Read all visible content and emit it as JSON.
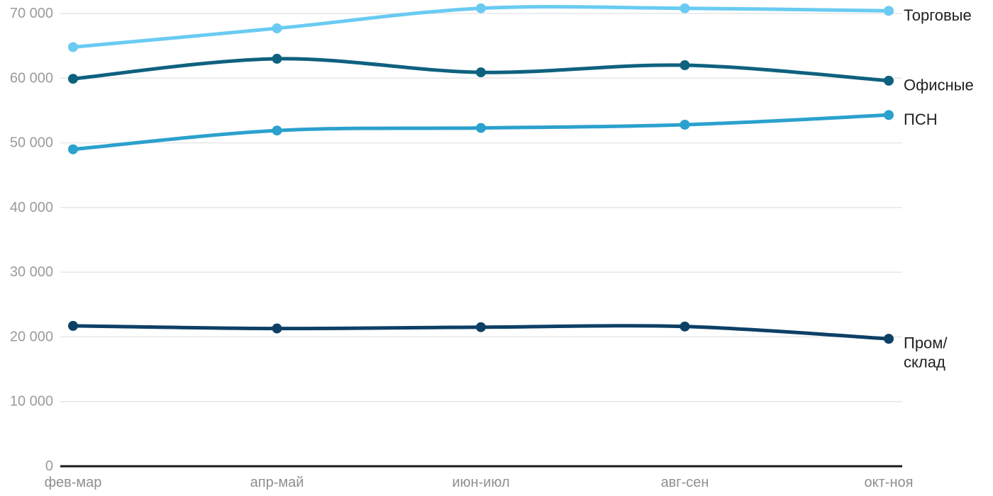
{
  "chart_data": {
    "type": "line",
    "categories": [
      "фев-мар",
      "апр-май",
      "июн-июл",
      "авг-сен",
      "окт-ноя"
    ],
    "series": [
      {
        "name": "Торговые",
        "slug": "torgovye",
        "values": [
          64800,
          67700,
          70800,
          70800,
          70400
        ],
        "color": "#69CBF2",
        "label_lines": [
          "Торговые"
        ]
      },
      {
        "name": "Офисные",
        "slug": "ofisnye",
        "values": [
          59900,
          63000,
          60900,
          62000,
          59600
        ],
        "color": "#0E617F",
        "label_lines": [
          "Офисные"
        ]
      },
      {
        "name": "ПСН",
        "slug": "psn",
        "values": [
          49000,
          51900,
          52300,
          52800,
          54300
        ],
        "color": "#2BA1CE",
        "label_lines": [
          "ПСН"
        ]
      },
      {
        "name": "Пром/склад",
        "slug": "prom-sklad",
        "values": [
          21700,
          21300,
          21500,
          21600,
          19700
        ],
        "color": "#0E4066",
        "label_lines": [
          "Пром/",
          "склад"
        ]
      }
    ],
    "yticks": [
      0,
      10000,
      20000,
      30000,
      40000,
      50000,
      60000,
      70000
    ],
    "ytick_labels": [
      "0",
      "10 000",
      "20 000",
      "30 000",
      "40 000",
      "50 000",
      "60 000",
      "70 000"
    ],
    "ylim": [
      0,
      70000
    ],
    "title": "",
    "xlabel": "",
    "ylabel": "",
    "grid": true,
    "legend_position": "right-end-labels"
  },
  "colors": {
    "background": "#ffffff",
    "grid_line": "#e6e6e6",
    "axis_line": "#1a1a1a",
    "y_tick_label": "#9b9b9b",
    "x_tick_label": "#8f8f8f",
    "series_label": "#212121"
  }
}
